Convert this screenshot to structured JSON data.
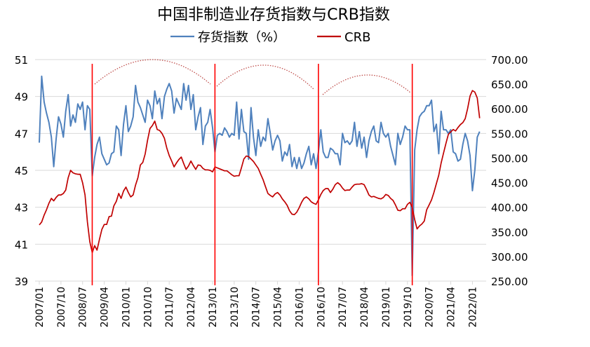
{
  "chart_data": {
    "type": "line",
    "title": "中国非制造业存货指数与CRB指数",
    "x_tick_labels": [
      "2007/01",
      "2007/10",
      "2008/07",
      "2009/04",
      "2010/01",
      "2010/10",
      "2011/07",
      "2012/04",
      "2013/01",
      "2013/10",
      "2014/07",
      "2015/04",
      "2016/01",
      "2016/10",
      "2017/07",
      "2018/04",
      "2019/01",
      "2019/10",
      "2020/07",
      "2021/04",
      "2022/01"
    ],
    "x_start": "2007/01",
    "x_frequency": "monthly",
    "y_left": {
      "range": [
        39,
        51
      ],
      "ticks": [
        "39",
        "41",
        "43",
        "45",
        "47",
        "49",
        "51"
      ]
    },
    "y_right": {
      "range": [
        250,
        700
      ],
      "ticks": [
        "250.00",
        "300.00",
        "350.00",
        "400.00",
        "450.00",
        "500.00",
        "550.00",
        "600.00",
        "650.00",
        "700.00"
      ]
    },
    "grid": "horizontal",
    "legend_position": "top",
    "series": [
      {
        "name": "存货指数（%）",
        "axis": "left",
        "color": "#4f81bd",
        "values": [
          46.5,
          50.1,
          48.7,
          48.1,
          47.6,
          46.8,
          45.2,
          46.7,
          47.9,
          47.5,
          46.8,
          48.2,
          49.1,
          47.4,
          48.0,
          47.6,
          48.6,
          48.3,
          48.7,
          47.2,
          48.5,
          48.3,
          44.7,
          45.7,
          46.4,
          46.8,
          45.9,
          45.6,
          45.3,
          45.4,
          45.9,
          46.0,
          47.4,
          47.2,
          45.8,
          47.5,
          48.5,
          47.1,
          47.4,
          47.9,
          49.6,
          48.7,
          48.4,
          48.0,
          47.6,
          48.8,
          48.5,
          47.8,
          49.3,
          48.6,
          48.9,
          47.8,
          49.0,
          49.4,
          49.7,
          49.3,
          48.1,
          48.9,
          48.6,
          48.3,
          49.7,
          48.8,
          49.6,
          48.3,
          49.1,
          47.2,
          47.9,
          48.4,
          46.4,
          47.4,
          47.6,
          48.3,
          47.3,
          46.0,
          46.9,
          47.0,
          46.9,
          47.3,
          47.1,
          46.8,
          47.0,
          46.9,
          48.7,
          46.7,
          48.3,
          47.1,
          47.0,
          45.6,
          48.4,
          46.8,
          45.8,
          47.2,
          46.3,
          46.8,
          46.6,
          47.8,
          47.0,
          46.1,
          46.6,
          46.9,
          46.6,
          45.5,
          46.0,
          45.8,
          46.4,
          45.2,
          45.7,
          45.1,
          45.7,
          45.1,
          45.4,
          45.9,
          46.3,
          45.3,
          45.9,
          45.1,
          46.0,
          47.2,
          46.0,
          45.7,
          45.7,
          46.2,
          46.1,
          45.9,
          45.9,
          45.3,
          47.0,
          46.5,
          46.6,
          46.4,
          46.6,
          47.6,
          46.3,
          47.1,
          46.2,
          46.8,
          45.7,
          46.6,
          47.1,
          47.4,
          46.6,
          46.5,
          47.6,
          47.0,
          46.8,
          47.0,
          46.3,
          45.8,
          45.3,
          47.0,
          46.4,
          46.8,
          47.4,
          47.2,
          47.2,
          39.3,
          46.1,
          47.2,
          47.9,
          48.1,
          48.2,
          48.5,
          48.5,
          48.8,
          47.1,
          47.5,
          45.9,
          48.2,
          47.2,
          47.2,
          47.0,
          47.2,
          46.0,
          45.9,
          45.5,
          45.6,
          46.4,
          47.0,
          46.6,
          45.8,
          43.9,
          45.0,
          46.8,
          47.1
        ]
      },
      {
        "name": "CRB",
        "axis": "right",
        "color": "#c00000",
        "values": [
          364,
          370,
          384,
          395,
          408,
          418,
          413,
          420,
          425,
          425,
          428,
          435,
          460,
          475,
          470,
          468,
          467,
          467,
          450,
          425,
          370,
          330,
          308,
          322,
          313,
          335,
          355,
          365,
          365,
          381,
          382,
          403,
          412,
          428,
          418,
          433,
          441,
          430,
          421,
          425,
          445,
          460,
          486,
          491,
          508,
          536,
          560,
          566,
          575,
          558,
          556,
          550,
          540,
          520,
          505,
          494,
          482,
          490,
          497,
          502,
          489,
          477,
          484,
          494,
          485,
          477,
          486,
          485,
          479,
          476,
          476,
          475,
          472,
          482,
          480,
          478,
          476,
          474,
          474,
          470,
          466,
          463,
          464,
          464,
          480,
          498,
          504,
          503,
          498,
          493,
          486,
          479,
          467,
          456,
          442,
          428,
          424,
          421,
          427,
          430,
          425,
          417,
          411,
          404,
          393,
          386,
          385,
          390,
          399,
          410,
          418,
          421,
          417,
          411,
          408,
          406,
          415,
          426,
          434,
          438,
          438,
          430,
          437,
          446,
          450,
          446,
          439,
          434,
          435,
          435,
          441,
          446,
          447,
          447,
          448,
          446,
          436,
          425,
          421,
          422,
          420,
          418,
          417,
          420,
          426,
          424,
          418,
          414,
          405,
          394,
          393,
          397,
          397,
          406,
          410,
          400,
          375,
          356,
          362,
          366,
          372,
          395,
          405,
          415,
          430,
          448,
          465,
          490,
          510,
          530,
          548,
          553,
          558,
          555,
          562,
          568,
          572,
          580,
          600,
          626,
          637,
          634,
          622,
          581
        ]
      }
    ],
    "annotations": {
      "vertical_markers": [
        "2008/11",
        "2013/02",
        "2016/09",
        "2019/12"
      ],
      "marker_color": "#ff0000",
      "cycle_arcs": 3
    }
  }
}
